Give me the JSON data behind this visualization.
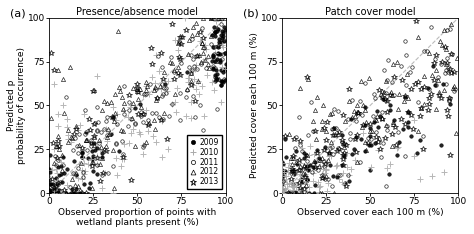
{
  "panel_a": {
    "title": "Presence/absence model",
    "xlabel": "Observed proportion of points with\nwetland plants present (%)",
    "ylabel": "Predicted p\nprobability of occurrence)",
    "xlim": [
      0,
      100
    ],
    "ylim": [
      0,
      100
    ],
    "xticks": [
      0,
      25,
      50,
      75,
      100
    ],
    "yticks": [
      0,
      25,
      50,
      75,
      100
    ]
  },
  "panel_b": {
    "title": "Patch cover model",
    "xlabel": "Observed cover each 100 m (%)",
    "ylabel": "Predicted cover each 100 m (%)",
    "xlim": [
      0,
      100
    ],
    "ylim": [
      0,
      100
    ],
    "xticks": [
      0,
      25,
      50,
      75,
      100
    ],
    "yticks": [
      0,
      25,
      50,
      75,
      100
    ]
  },
  "years": [
    "2009",
    "2010",
    "2011",
    "2012",
    "2013"
  ],
  "colors": {
    "2009": "#000000",
    "2010": "#aaaaaa",
    "2011": "#000000",
    "2012": "#000000",
    "2013": "#000000"
  },
  "markers": {
    "2009": "o",
    "2010": "+",
    "2011": "o",
    "2012": "^",
    "2013": "*"
  },
  "marker_filled": {
    "2009": true,
    "2010": false,
    "2011": false,
    "2012": false,
    "2013": false
  },
  "label_a": "(a)",
  "label_b": "(b)",
  "markersize": {
    "2009": 2.5,
    "2010": 4.0,
    "2011": 2.5,
    "2012": 3.0,
    "2013": 4.0
  },
  "markeredgewidth": {
    "2009": 0.5,
    "2010": 0.7,
    "2011": 0.5,
    "2012": 0.5,
    "2013": 0.6
  }
}
